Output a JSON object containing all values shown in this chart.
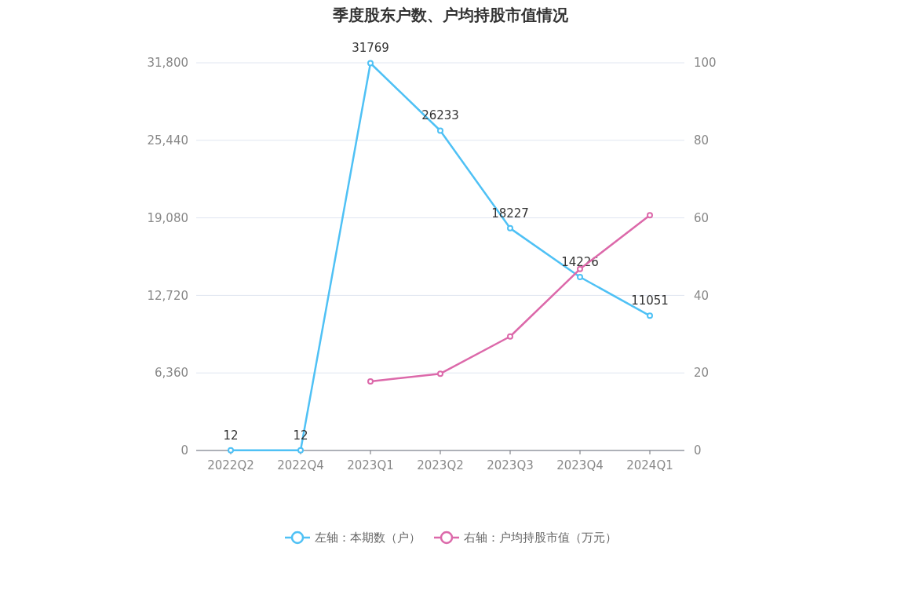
{
  "chart_data": {
    "type": "line",
    "title": "季度股东户数、户均持股市值情况",
    "categories": [
      "2022Q2",
      "2022Q4",
      "2023Q1",
      "2023Q2",
      "2023Q3",
      "2023Q4",
      "2024Q1"
    ],
    "series": [
      {
        "name": "左轴：本期数（户）",
        "color": "#4fc1f5",
        "values": [
          12,
          12,
          31769,
          26233,
          18227,
          14226,
          11051
        ],
        "value_labels": [
          "12",
          "12",
          "31769",
          "26233",
          "18227",
          "14226",
          "11051"
        ]
      },
      {
        "name": "右轴：户均持股市值（万元）",
        "color": "#dc69aa",
        "axis": "y2",
        "values": [
          null,
          null,
          17.8,
          19.8,
          29.4,
          46.8,
          60.7
        ]
      }
    ],
    "ylim": [
      0,
      31800
    ],
    "yticks": [
      0,
      {
        "value": 6360,
        "label": "6,360"
      },
      {
        "value": 12720,
        "label": "12,720"
      },
      {
        "value": 19080,
        "label": "19,080"
      },
      {
        "value": 25440,
        "label": "25,440"
      },
      {
        "value": 31800,
        "label": "31,800"
      }
    ],
    "y2lim": [
      0,
      100
    ],
    "y2ticks": [
      0,
      20,
      40,
      60,
      80,
      100
    ],
    "grid": "y",
    "legend": "bottom",
    "marker": "circle",
    "line_style": "solid"
  }
}
